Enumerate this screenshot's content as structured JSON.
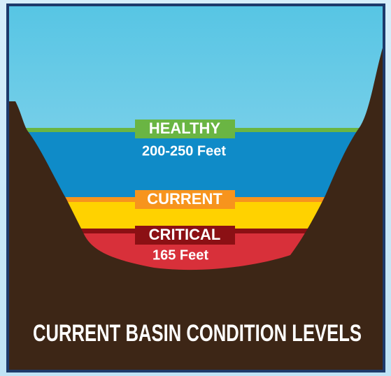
{
  "levels": [
    {
      "label": "HEALTHY",
      "depth": "200-250 Feet"
    },
    {
      "label": "CURRENT"
    },
    {
      "label": "CRITICAL",
      "depth": "165 Feet"
    }
  ],
  "title": "CURRENT BASIN CONDITION LEVELS"
}
